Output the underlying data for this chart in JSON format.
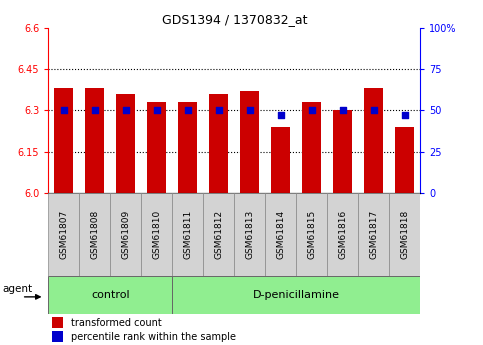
{
  "title": "GDS1394 / 1370832_at",
  "categories": [
    "GSM61807",
    "GSM61808",
    "GSM61809",
    "GSM61810",
    "GSM61811",
    "GSM61812",
    "GSM61813",
    "GSM61814",
    "GSM61815",
    "GSM61816",
    "GSM61817",
    "GSM61818"
  ],
  "bar_values": [
    6.38,
    6.38,
    6.36,
    6.33,
    6.33,
    6.36,
    6.37,
    6.24,
    6.33,
    6.3,
    6.38,
    6.24
  ],
  "percentile_values": [
    50,
    50,
    50,
    50,
    50,
    50,
    50,
    47,
    50,
    50,
    50,
    47
  ],
  "bar_bottom": 6.0,
  "ylim": [
    6.0,
    6.6
  ],
  "yticks_left": [
    6.0,
    6.15,
    6.3,
    6.45,
    6.6
  ],
  "yticks_right": [
    0,
    25,
    50,
    75,
    100
  ],
  "bar_color": "#cc0000",
  "percentile_color": "#0000cc",
  "grid_color": "#000000",
  "grid_lines": [
    6.15,
    6.3,
    6.45
  ],
  "n_control": 4,
  "control_label": "control",
  "treatment_label": "D-penicillamine",
  "agent_label": "agent",
  "legend_bar_label": "transformed count",
  "legend_pct_label": "percentile rank within the sample",
  "bg_xticklabels": "#d3d3d3",
  "bg_control": "#90ee90",
  "bg_treatment": "#90ee90",
  "bar_width": 0.6
}
